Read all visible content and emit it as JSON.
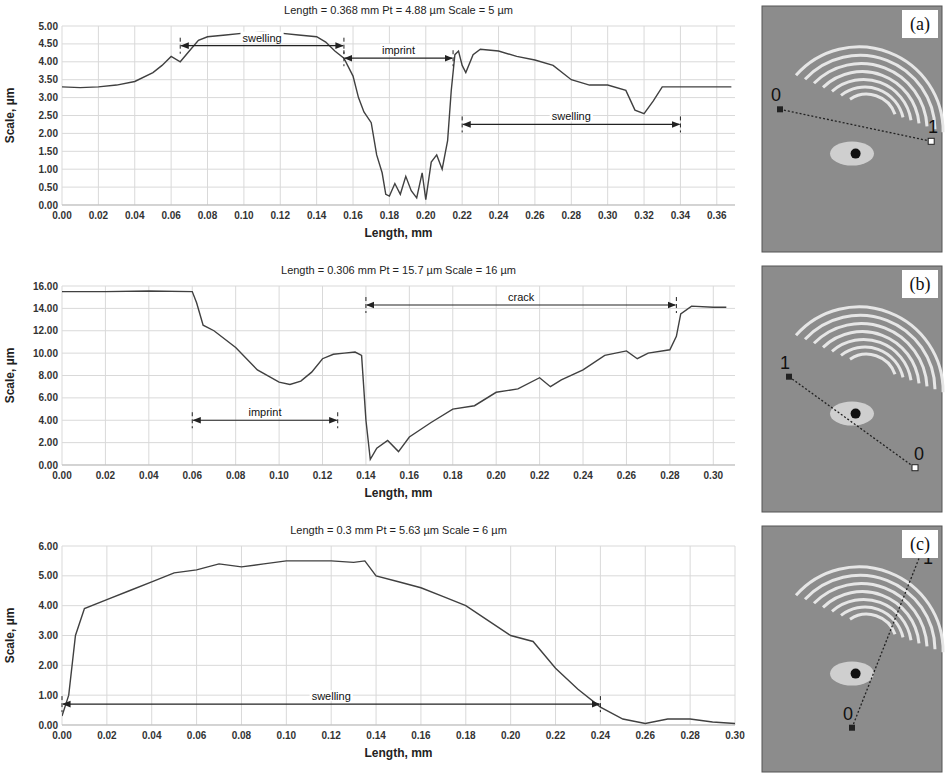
{
  "chart_data": [
    {
      "type": "line",
      "title": "Length = 0.368 mm Pt = 4.88 µm Scale = 5 µm",
      "xlabel": "Length, mm",
      "ylabel": "Scale, µm",
      "color": "#404040",
      "grid": true,
      "panel": "(a)",
      "image_labels": [
        "0",
        "1"
      ],
      "xlim": [
        0,
        0.37
      ],
      "ylim": [
        0,
        5
      ],
      "xticks": [
        {
          "value": 0,
          "label": "0.00"
        },
        {
          "value": 0.02,
          "label": "0.02"
        },
        {
          "value": 0.04,
          "label": "0.04"
        },
        {
          "value": 0.06,
          "label": "0.06"
        },
        {
          "value": 0.08,
          "label": "0.08"
        },
        {
          "value": 0.1,
          "label": "0.10"
        },
        {
          "value": 0.12,
          "label": "0.12"
        },
        {
          "value": 0.14,
          "label": "0.14"
        },
        {
          "value": 0.16,
          "label": "0.16"
        },
        {
          "value": 0.18,
          "label": "0.18"
        },
        {
          "value": 0.2,
          "label": "0.20"
        },
        {
          "value": 0.22,
          "label": "0.22"
        },
        {
          "value": 0.24,
          "label": "0.24"
        },
        {
          "value": 0.26,
          "label": "0.26"
        },
        {
          "value": 0.28,
          "label": "0.28"
        },
        {
          "value": 0.3,
          "label": "0.30"
        },
        {
          "value": 0.32,
          "label": "0.32"
        },
        {
          "value": 0.34,
          "label": "0.34"
        },
        {
          "value": 0.36,
          "label": "0.36"
        }
      ],
      "yticks": [
        {
          "value": 0,
          "label": "0.00"
        },
        {
          "value": 0.5,
          "label": "0.50"
        },
        {
          "value": 1,
          "label": "1.00"
        },
        {
          "value": 1.5,
          "label": "1.50"
        },
        {
          "value": 2,
          "label": "2.00"
        },
        {
          "value": 2.5,
          "label": "2.50"
        },
        {
          "value": 3,
          "label": "3.00"
        },
        {
          "value": 3.5,
          "label": "3.50"
        },
        {
          "value": 4,
          "label": "4.00"
        },
        {
          "value": 4.5,
          "label": "4.50"
        },
        {
          "value": 5,
          "label": "5.00"
        }
      ],
      "x": [
        0,
        0.01,
        0.02,
        0.03,
        0.04,
        0.05,
        0.055,
        0.06,
        0.065,
        0.07,
        0.075,
        0.08,
        0.09,
        0.1,
        0.11,
        0.12,
        0.13,
        0.14,
        0.145,
        0.15,
        0.155,
        0.16,
        0.163,
        0.166,
        0.17,
        0.173,
        0.176,
        0.178,
        0.18,
        0.183,
        0.186,
        0.189,
        0.192,
        0.195,
        0.198,
        0.2,
        0.203,
        0.206,
        0.209,
        0.212,
        0.214,
        0.216,
        0.218,
        0.22,
        0.222,
        0.226,
        0.23,
        0.24,
        0.25,
        0.26,
        0.27,
        0.28,
        0.29,
        0.3,
        0.31,
        0.315,
        0.32,
        0.325,
        0.33,
        0.34,
        0.35,
        0.36,
        0.368
      ],
      "values": [
        3.3,
        3.28,
        3.3,
        3.35,
        3.45,
        3.7,
        3.9,
        4.15,
        4.0,
        4.3,
        4.6,
        4.7,
        4.75,
        4.8,
        4.82,
        4.8,
        4.75,
        4.7,
        4.55,
        4.3,
        4.1,
        3.6,
        3.0,
        2.6,
        2.3,
        1.4,
        0.9,
        0.3,
        0.25,
        0.6,
        0.3,
        0.8,
        0.4,
        0.2,
        0.9,
        0.15,
        1.2,
        1.4,
        1.0,
        1.8,
        3.2,
        4.2,
        4.3,
        3.9,
        3.7,
        4.2,
        4.35,
        4.3,
        4.15,
        4.05,
        3.9,
        3.5,
        3.35,
        3.35,
        3.2,
        2.65,
        2.55,
        2.9,
        3.3,
        3.3,
        3.3,
        3.3,
        3.3
      ],
      "annotations": [
        {
          "text": "swelling",
          "x": [
            0.065,
            0.155
          ],
          "y": 4.45
        },
        {
          "text": "imprint",
          "x": [
            0.155,
            0.215
          ],
          "y": 4.1
        },
        {
          "text": "swelling",
          "x": [
            0.22,
            0.34
          ],
          "y": 2.25
        }
      ]
    },
    {
      "type": "line",
      "title": "Length = 0.306 mm Pt = 15.7 µm  Scale = 16 µm",
      "xlabel": "Length, mm",
      "ylabel": "Scale, µm",
      "color": "#404040",
      "grid": true,
      "panel": "(b)",
      "image_labels": [
        "1",
        "0"
      ],
      "xlim": [
        0,
        0.31
      ],
      "ylim": [
        0,
        16
      ],
      "xticks": [
        {
          "value": 0,
          "label": "0.00"
        },
        {
          "value": 0.02,
          "label": "0.02"
        },
        {
          "value": 0.04,
          "label": "0.04"
        },
        {
          "value": 0.06,
          "label": "0.06"
        },
        {
          "value": 0.08,
          "label": "0.08"
        },
        {
          "value": 0.1,
          "label": "0.10"
        },
        {
          "value": 0.12,
          "label": "0.12"
        },
        {
          "value": 0.14,
          "label": "0.14"
        },
        {
          "value": 0.16,
          "label": "0.16"
        },
        {
          "value": 0.18,
          "label": "0.18"
        },
        {
          "value": 0.2,
          "label": "0.20"
        },
        {
          "value": 0.22,
          "label": "0.22"
        },
        {
          "value": 0.24,
          "label": "0.24"
        },
        {
          "value": 0.26,
          "label": "0.26"
        },
        {
          "value": 0.28,
          "label": "0.28"
        },
        {
          "value": 0.3,
          "label": "0.30"
        }
      ],
      "yticks": [
        {
          "value": 0,
          "label": "0.00"
        },
        {
          "value": 2,
          "label": "2.00"
        },
        {
          "value": 4,
          "label": "4.00"
        },
        {
          "value": 6,
          "label": "6.00"
        },
        {
          "value": 8,
          "label": "8.00"
        },
        {
          "value": 10,
          "label": "10.00"
        },
        {
          "value": 12,
          "label": "12.00"
        },
        {
          "value": 14,
          "label": "14.00"
        },
        {
          "value": 16,
          "label": "16.00"
        }
      ],
      "x": [
        0,
        0.02,
        0.04,
        0.06,
        0.062,
        0.065,
        0.07,
        0.08,
        0.09,
        0.1,
        0.105,
        0.11,
        0.115,
        0.12,
        0.125,
        0.13,
        0.135,
        0.138,
        0.14,
        0.142,
        0.145,
        0.15,
        0.155,
        0.16,
        0.17,
        0.18,
        0.19,
        0.2,
        0.21,
        0.22,
        0.225,
        0.23,
        0.24,
        0.25,
        0.26,
        0.265,
        0.27,
        0.28,
        0.283,
        0.285,
        0.29,
        0.3,
        0.306
      ],
      "values": [
        15.5,
        15.5,
        15.55,
        15.5,
        14.5,
        12.5,
        12.0,
        10.5,
        8.5,
        7.4,
        7.2,
        7.5,
        8.3,
        9.5,
        9.9,
        10.0,
        10.1,
        9.8,
        4.0,
        0.5,
        1.5,
        2.2,
        1.2,
        2.5,
        3.8,
        5.0,
        5.3,
        6.5,
        6.8,
        7.8,
        7.0,
        7.6,
        8.5,
        9.8,
        10.2,
        9.5,
        10.0,
        10.3,
        11.5,
        13.5,
        14.2,
        14.1,
        14.1
      ],
      "annotations": [
        {
          "text": "imprint",
          "x": [
            0.06,
            0.127
          ],
          "y": 4.0
        },
        {
          "text": "crack",
          "x": [
            0.14,
            0.283
          ],
          "y": 14.3
        }
      ]
    },
    {
      "type": "line",
      "title": "Length = 0.3 mm Pt = 5.63 µm  Scale = 6 µm",
      "xlabel": "Length, mm",
      "ylabel": "Scale, µm",
      "color": "#404040",
      "grid": true,
      "panel": "(c)",
      "image_labels": [
        "0",
        "1"
      ],
      "xlim": [
        0,
        0.3
      ],
      "ylim": [
        0,
        6
      ],
      "xticks": [
        {
          "value": 0,
          "label": "0.00"
        },
        {
          "value": 0.02,
          "label": "0.02"
        },
        {
          "value": 0.04,
          "label": "0.04"
        },
        {
          "value": 0.06,
          "label": "0.06"
        },
        {
          "value": 0.08,
          "label": "0.08"
        },
        {
          "value": 0.1,
          "label": "0.10"
        },
        {
          "value": 0.12,
          "label": "0.12"
        },
        {
          "value": 0.14,
          "label": "0.14"
        },
        {
          "value": 0.16,
          "label": "0.16"
        },
        {
          "value": 0.18,
          "label": "0.18"
        },
        {
          "value": 0.2,
          "label": "0.20"
        },
        {
          "value": 0.22,
          "label": "0.22"
        },
        {
          "value": 0.24,
          "label": "0.24"
        },
        {
          "value": 0.26,
          "label": "0.26"
        },
        {
          "value": 0.28,
          "label": "0.28"
        },
        {
          "value": 0.3,
          "label": "0.30"
        }
      ],
      "yticks": [
        {
          "value": 0,
          "label": "0.00"
        },
        {
          "value": 1,
          "label": "1.00"
        },
        {
          "value": 2,
          "label": "2.00"
        },
        {
          "value": 3,
          "label": "3.00"
        },
        {
          "value": 4,
          "label": "4.00"
        },
        {
          "value": 5,
          "label": "5.00"
        },
        {
          "value": 6,
          "label": "6.00"
        }
      ],
      "x": [
        0,
        0.003,
        0.006,
        0.01,
        0.02,
        0.03,
        0.04,
        0.05,
        0.06,
        0.07,
        0.08,
        0.09,
        0.1,
        0.11,
        0.12,
        0.13,
        0.135,
        0.14,
        0.15,
        0.16,
        0.17,
        0.18,
        0.19,
        0.2,
        0.21,
        0.22,
        0.23,
        0.24,
        0.25,
        0.26,
        0.27,
        0.28,
        0.29,
        0.3
      ],
      "values": [
        0.3,
        1.0,
        3.0,
        3.9,
        4.2,
        4.5,
        4.8,
        5.1,
        5.2,
        5.4,
        5.3,
        5.4,
        5.5,
        5.5,
        5.5,
        5.45,
        5.5,
        5.0,
        4.8,
        4.6,
        4.3,
        4.0,
        3.5,
        3.0,
        2.8,
        1.9,
        1.2,
        0.6,
        0.2,
        0.05,
        0.2,
        0.2,
        0.1,
        0.05
      ],
      "annotations": [
        {
          "text": "swelling",
          "x": [
            0,
            0.24
          ],
          "y": 0.7
        }
      ]
    }
  ]
}
